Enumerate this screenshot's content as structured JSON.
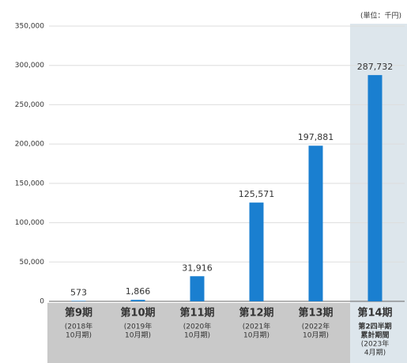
{
  "chart_data": {
    "type": "bar",
    "unit_label": "(単位：千円)",
    "categories": [
      [
        "第9期",
        "(2018年",
        "10月期)"
      ],
      [
        "第10期",
        "(2019年",
        "10月期)"
      ],
      [
        "第11期",
        "(2020年",
        "10月期)"
      ],
      [
        "第12期",
        "(2021年",
        "10月期)"
      ],
      [
        "第13期",
        "(2022年",
        "10月期)"
      ],
      [
        "第14期",
        "第2四半期",
        "累計期間",
        "(2023年",
        "4月期)"
      ]
    ],
    "values": [
      573,
      1866,
      31916,
      125571,
      197881,
      287732
    ],
    "value_labels": [
      "573",
      "1,866",
      "31,916",
      "125,571",
      "197,881",
      "287,732"
    ],
    "color": "#1a7fd0",
    "ylim": [
      0,
      350000
    ],
    "yticks": [
      0,
      {
        "value": 50000,
        "label": "50,000"
      },
      {
        "value": 100000,
        "label": "100,000"
      },
      {
        "value": 150000,
        "label": "150,000"
      },
      {
        "value": 200000,
        "label": "200,000"
      },
      {
        "value": 250000,
        "label": "250,000"
      },
      {
        "value": 300000,
        "label": "300,000"
      },
      {
        "value": 350000,
        "label": "350,000"
      }
    ],
    "grid": true
  }
}
